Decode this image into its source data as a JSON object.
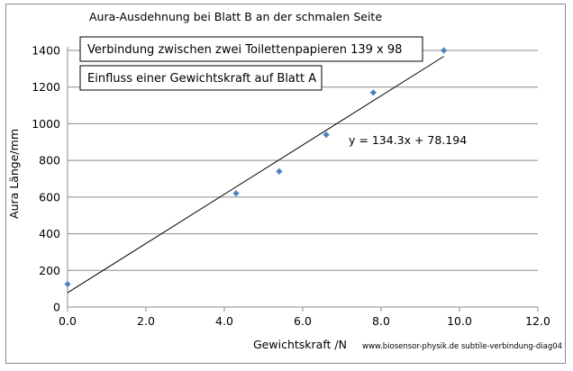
{
  "chart_data": {
    "type": "scatter",
    "title": "Aura-Ausdehnung bei Blatt B an der schmalen Seite",
    "xlabel": "Gewichtskraft /N",
    "ylabel": "Aura Länge/mm",
    "xlim": [
      0,
      12
    ],
    "ylim": [
      0,
      1400
    ],
    "x_ticks": [
      "0.0",
      "2.0",
      "4.0",
      "6.0",
      "8.0",
      "10.0",
      "12.0"
    ],
    "y_ticks": [
      "0",
      "200",
      "400",
      "600",
      "800",
      "1000",
      "1200",
      "1400"
    ],
    "grid": "horizontal",
    "series": [
      {
        "points": [
          {
            "x": 0.0,
            "y": 125
          },
          {
            "x": 4.3,
            "y": 620
          },
          {
            "x": 5.4,
            "y": 740
          },
          {
            "x": 6.6,
            "y": 940
          },
          {
            "x": 7.8,
            "y": 1170
          },
          {
            "x": 9.6,
            "y": 1400
          }
        ],
        "color": "#4f81bd"
      }
    ],
    "trendline": {
      "slope": 134.3,
      "intercept": 78.194,
      "x_start": 0.0,
      "x_end": 9.6,
      "label": "y = 134.3x + 78.194"
    },
    "annotations": [
      "Verbindung zwischen zwei Toilettenpapieren 139 x 98",
      "Einfluss einer Gewichtskraft auf Blatt A"
    ],
    "credit": "www.biosensor-physik.de  subtile-verbindung-diag04"
  }
}
